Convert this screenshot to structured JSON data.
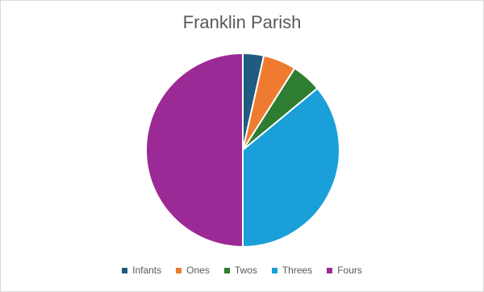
{
  "chart_data": {
    "type": "pie",
    "title": "Franklin Parish",
    "categories": [
      "Infants",
      "Ones",
      "Twos",
      "Threes",
      "Fours"
    ],
    "values": [
      3.5,
      5.5,
      5,
      36,
      50
    ],
    "colors": [
      "#1f5c80",
      "#ee7b30",
      "#2e7d32",
      "#1a9fd9",
      "#9b2a96"
    ],
    "legend_position": "bottom"
  }
}
